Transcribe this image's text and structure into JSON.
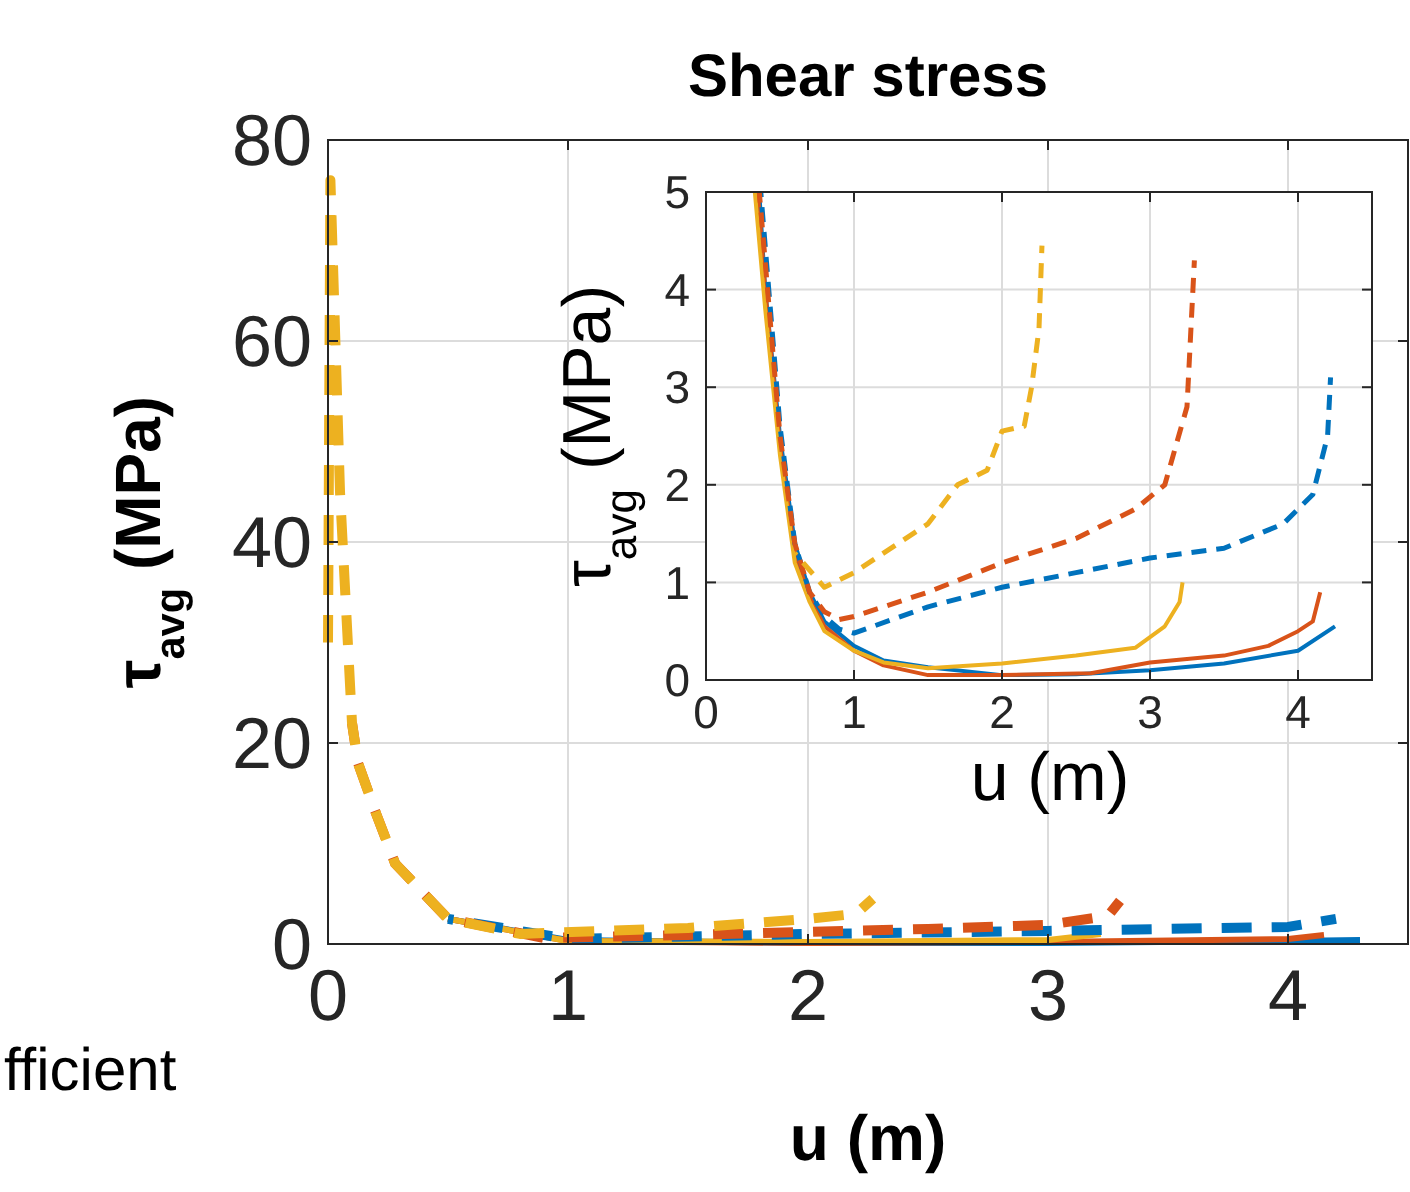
{
  "chart_data": [
    {
      "type": "line",
      "title": "Shear stress",
      "xlabel": "u (m)",
      "ylabel": "τ$_{avg}$ (MPa)",
      "xlim": [
        0,
        4.5
      ],
      "ylim": [
        0,
        80
      ],
      "xticks": [
        0,
        1,
        2,
        3,
        4
      ],
      "yticks": [
        0,
        20,
        40,
        60,
        80
      ],
      "grid": true,
      "annotations": [
        "fficient"
      ],
      "series": [
        {
          "color": "#0072bd",
          "line_style": "solid",
          "x": [
            0.5,
            1.0,
            2.0,
            3.0,
            4.0,
            4.3
          ],
          "values": [
            2.5,
            0.4,
            0.1,
            0.1,
            0.3,
            0.4
          ]
        },
        {
          "color": "#d95319",
          "line_style": "solid",
          "x": [
            0.5,
            1.0,
            2.0,
            3.0,
            4.0,
            4.15
          ],
          "values": [
            2.5,
            0.3,
            0.1,
            0.2,
            0.5,
            0.9
          ]
        },
        {
          "color": "#edb120",
          "line_style": "solid",
          "x": [
            0.5,
            1.0,
            2.0,
            3.0,
            3.22
          ],
          "values": [
            2.5,
            0.3,
            0.2,
            0.4,
            1
          ]
        },
        {
          "color": "#0072bd",
          "line_style": "dashed",
          "x": [
            0.5,
            1.0,
            2.0,
            3.0,
            4.0,
            4.2
          ],
          "values": [
            2.5,
            0.5,
            1,
            1.3,
            1.7,
            2.5
          ]
        },
        {
          "color": "#d95319",
          "line_style": "dashed",
          "x": [
            0.1,
            0.125,
            0.2,
            0.28,
            0.5,
            0.9,
            1.5,
            2.0,
            2.5,
            3.0,
            3.25,
            3.3
          ],
          "values": [
            22,
            18,
            13,
            8,
            2.5,
            0.6,
            0.9,
            1.2,
            1.5,
            1.9,
            2.8,
            4.3
          ]
        },
        {
          "color": "#edb120",
          "line_style": "dashed",
          "x": [
            0,
            0.01,
            0.05,
            0.1,
            0.125,
            0.2,
            0.28,
            0.5,
            0.8,
            1.5,
            2.0,
            2.2,
            2.27
          ],
          "values": [
            30,
            76,
            45,
            22,
            18,
            13,
            8,
            2.5,
            1,
            1.6,
            2.5,
            3,
            4.5
          ]
        }
      ]
    },
    {
      "type": "line",
      "xlabel": "u (m)",
      "ylabel": "τ$_{avg}$ (MPa)",
      "xlim": [
        0,
        4.5
      ],
      "ylim": [
        0,
        5
      ],
      "xticks": [
        0,
        1,
        2,
        3,
        4
      ],
      "yticks": [
        0,
        1,
        2,
        3,
        4,
        5
      ],
      "grid": true,
      "series": [
        {
          "color": "#0072bd",
          "line_style": "solid",
          "x": [
            0.36,
            0.4,
            0.5,
            0.6,
            0.7,
            0.8,
            1.0,
            1.2,
            1.5,
            2.0,
            2.5,
            3.0,
            3.5,
            4.0,
            4.25
          ],
          "values": [
            5,
            4,
            2.5,
            1.4,
            0.9,
            0.6,
            0.35,
            0.2,
            0.13,
            0.05,
            0.06,
            0.1,
            0.17,
            0.3,
            0.55
          ]
        },
        {
          "color": "#d95319",
          "line_style": "solid",
          "x": [
            0.35,
            0.4,
            0.5,
            0.6,
            0.7,
            0.8,
            1.0,
            1.2,
            1.5,
            2.0,
            2.6,
            3.0,
            3.5,
            3.8,
            4.0,
            4.1,
            4.15
          ],
          "values": [
            5,
            4,
            2.4,
            1.3,
            0.85,
            0.55,
            0.3,
            0.15,
            0.05,
            0.05,
            0.07,
            0.18,
            0.25,
            0.35,
            0.5,
            0.6,
            0.9
          ]
        },
        {
          "color": "#edb120",
          "line_style": "solid",
          "x": [
            0.33,
            0.4,
            0.5,
            0.6,
            0.7,
            0.8,
            1.0,
            1.2,
            1.5,
            2.0,
            2.5,
            2.9,
            3.1,
            3.2,
            3.22
          ],
          "values": [
            5,
            3.8,
            2.3,
            1.2,
            0.8,
            0.5,
            0.3,
            0.18,
            0.12,
            0.17,
            0.25,
            0.33,
            0.55,
            0.8,
            1.0
          ]
        },
        {
          "color": "#0072bd",
          "line_style": "dashed",
          "x": [
            0.37,
            0.5,
            0.6,
            0.7,
            0.8,
            0.9,
            1.0,
            1.5,
            2.0,
            2.5,
            3.0,
            3.5,
            3.9,
            4.1,
            4.2,
            4.22
          ],
          "values": [
            5,
            2.6,
            1.4,
            0.9,
            0.65,
            0.52,
            0.48,
            0.75,
            0.95,
            1.1,
            1.25,
            1.35,
            1.6,
            1.9,
            2.5,
            3.1
          ]
        },
        {
          "color": "#d95319",
          "line_style": "dashed",
          "x": [
            0.36,
            0.5,
            0.6,
            0.7,
            0.8,
            0.9,
            1.0,
            1.5,
            2.0,
            2.5,
            2.9,
            3.1,
            3.25,
            3.3
          ],
          "values": [
            5,
            2.5,
            1.4,
            0.9,
            0.7,
            0.62,
            0.65,
            0.9,
            1.2,
            1.45,
            1.75,
            2.0,
            2.8,
            4.3
          ]
        },
        {
          "color": "#edb120",
          "line_style": "dashed",
          "x": [
            0.6,
            0.8,
            1.0,
            1.5,
            1.7,
            1.9,
            2.0,
            2.15,
            2.2,
            2.25,
            2.27
          ],
          "values": [
            1.3,
            0.95,
            1.1,
            1.6,
            2.0,
            2.15,
            2.55,
            2.6,
            3.0,
            3.6,
            4.45
          ]
        }
      ]
    }
  ]
}
